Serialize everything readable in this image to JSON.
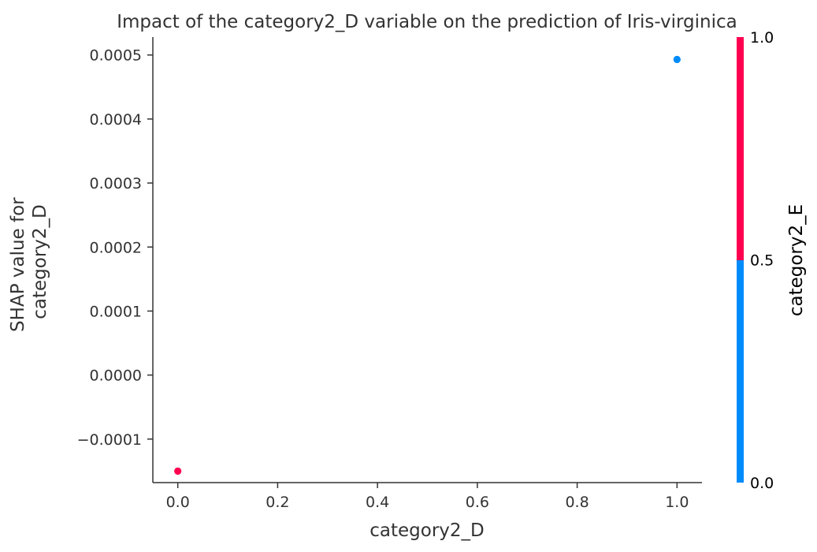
{
  "chart_data": {
    "type": "scatter",
    "title": "Impact of the category2_D variable on the prediction of Iris-virginica",
    "xlabel": "category2_D",
    "ylabel_lines": [
      "SHAP value for",
      "category2_D"
    ],
    "xlim": [
      -0.05,
      1.05
    ],
    "ylim": [
      -0.000168,
      0.000528
    ],
    "x_ticks": [
      0.0,
      0.2,
      0.4,
      0.6,
      0.8,
      1.0
    ],
    "x_tick_labels": [
      "0.0",
      "0.2",
      "0.4",
      "0.6",
      "0.8",
      "1.0"
    ],
    "y_ticks": [
      -0.0001,
      0.0,
      0.0001,
      0.0002,
      0.0003,
      0.0004,
      0.0005
    ],
    "y_tick_labels": [
      "−0.0001",
      "0.0000",
      "0.0001",
      "0.0002",
      "0.0003",
      "0.0004",
      "0.0005"
    ],
    "grid": false,
    "points": [
      {
        "x": 0.0,
        "y": -0.00015,
        "color_value": 1.0
      },
      {
        "x": 0.0,
        "y": -0.00015,
        "color_value": 1.0
      },
      {
        "x": 0.0,
        "y": -0.00015,
        "color_value": 1.0
      },
      {
        "x": 1.0,
        "y": 0.000493,
        "color_value": 0.0
      },
      {
        "x": 1.0,
        "y": 0.000493,
        "color_value": 0.0
      },
      {
        "x": 1.0,
        "y": 0.000493,
        "color_value": 0.0
      }
    ],
    "colorbar": {
      "label": "category2_E",
      "range": [
        0.0,
        1.0
      ],
      "tick_values": [
        0.0,
        0.5,
        1.0
      ],
      "tick_labels": [
        "0.0",
        "0.5",
        "1.0"
      ],
      "low_color": "#008bfb",
      "high_color": "#ff0051"
    },
    "colors": {
      "axis": "#333333",
      "text": "#333333",
      "colorbar_text": "#000000"
    }
  }
}
